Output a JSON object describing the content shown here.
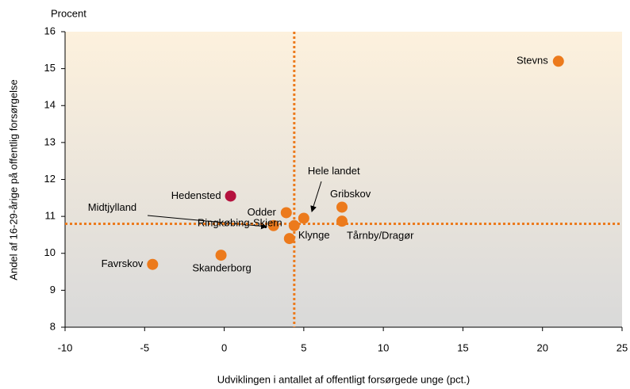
{
  "chart_data": {
    "type": "scatter",
    "y_unit_label": "Procent",
    "x_label": "Udviklingen i antallet af offentligt forsørgede unge (pct.)",
    "y_label": "Andel af 16-29-årige på offentlig forsørgelse",
    "xlim": [
      -10,
      25
    ],
    "ylim": [
      8,
      16
    ],
    "xticks": [
      -10,
      -5,
      0,
      5,
      10,
      15,
      20,
      25
    ],
    "yticks": [
      8,
      9,
      10,
      11,
      12,
      13,
      14,
      15,
      16
    ],
    "reference_lines": {
      "x": 4.4,
      "y": 10.8,
      "color": "#ec7a1c"
    },
    "points": [
      {
        "label": "Stevns",
        "x": 21,
        "y": 15.2,
        "color": "#ec7a1c"
      },
      {
        "label": "Hedensted",
        "x": 0.4,
        "y": 11.55,
        "color": "#b5123e"
      },
      {
        "label": "Gribskov",
        "x": 7.4,
        "y": 11.25,
        "color": "#ec7a1c"
      },
      {
        "label": "Tårnby/Dragør",
        "x": 7.4,
        "y": 10.87,
        "color": "#ec7a1c"
      },
      {
        "label": "Odder",
        "x": 3.9,
        "y": 11.1,
        "color": "#ec7a1c"
      },
      {
        "label": "Hele landet",
        "x": 5,
        "y": 10.95,
        "color": "#ec7a1c"
      },
      {
        "label": "Midtjylland",
        "x": 3.1,
        "y": 10.75,
        "color": "#ec7a1c"
      },
      {
        "label": "Klynge",
        "x": 4.4,
        "y": 10.75,
        "color": "#ec7a1c"
      },
      {
        "label": "Ringkøbing-Skjern",
        "x": 4.1,
        "y": 10.4,
        "color": "#ec7a1c"
      },
      {
        "label": "Skanderborg",
        "x": -0.2,
        "y": 9.95,
        "color": "#ec7a1c"
      },
      {
        "label": "Favrskov",
        "x": -4.5,
        "y": 9.7,
        "color": "#ec7a1c"
      }
    ]
  }
}
